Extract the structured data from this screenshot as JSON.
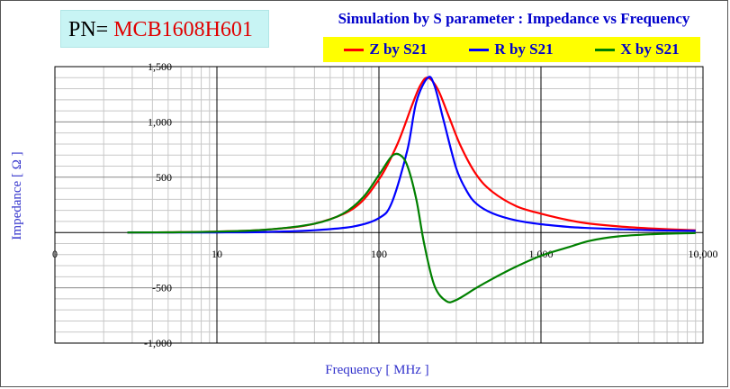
{
  "header": {
    "pn_prefix": "PN=",
    "pn_value": "MCB1608H601",
    "title": "Simulation by S parameter : Impedance vs Frequency"
  },
  "colors": {
    "z": "#ff0000",
    "r": "#0000ff",
    "x": "#008000",
    "legend_bg": "#ffff00",
    "pn_bg": "#c8f4f4",
    "title": "#0000cc"
  },
  "chart_data": {
    "type": "line",
    "title": "Simulation by S parameter : Impedance vs Frequency",
    "xlabel": "Frequency [ MHz ]",
    "ylabel": "Impedance [ Ω ]",
    "xscale": "log",
    "xlim": [
      1,
      10000
    ],
    "ylim": [
      -1000,
      1500
    ],
    "xtick_labels": [
      "0",
      "10",
      "100",
      "1,000",
      "10,000"
    ],
    "ytick_labels": [
      "1,500",
      "1,000",
      "500",
      "0",
      "-500",
      "-1,000"
    ],
    "grid": true,
    "legend_position": "top",
    "series": [
      {
        "name": "Z by S21",
        "color": "#ff0000",
        "x": [
          2.8,
          5,
          10,
          20,
          40,
          70,
          100,
          130,
          160,
          180,
          200,
          230,
          270,
          320,
          400,
          500,
          700,
          1000,
          1500,
          2000,
          3000,
          5000,
          9000
        ],
        "y": [
          0,
          2,
          8,
          25,
          80,
          220,
          480,
          800,
          1150,
          1330,
          1400,
          1300,
          1050,
          780,
          520,
          370,
          240,
          170,
          110,
          80,
          55,
          35,
          20
        ]
      },
      {
        "name": "R by S21",
        "color": "#0000ff",
        "x": [
          2.8,
          5,
          10,
          20,
          40,
          70,
          100,
          120,
          150,
          170,
          200,
          220,
          250,
          300,
          350,
          400,
          500,
          700,
          1000,
          1500,
          2000,
          3000,
          5000,
          9000
        ],
        "y": [
          0,
          0,
          1,
          5,
          20,
          55,
          130,
          270,
          750,
          1180,
          1400,
          1330,
          1020,
          580,
          370,
          260,
          175,
          110,
          75,
          50,
          40,
          30,
          20,
          15
        ]
      },
      {
        "name": "X by S21",
        "color": "#008000",
        "x": [
          2.8,
          5,
          10,
          20,
          40,
          60,
          80,
          100,
          120,
          135,
          150,
          170,
          190,
          220,
          260,
          300,
          400,
          500,
          700,
          1000,
          1500,
          2000,
          3000,
          5000,
          9000
        ],
        "y": [
          0,
          2,
          8,
          25,
          80,
          170,
          320,
          520,
          690,
          700,
          600,
          300,
          -100,
          -480,
          -620,
          -610,
          -500,
          -420,
          -310,
          -210,
          -130,
          -75,
          -35,
          -15,
          -5
        ]
      }
    ]
  }
}
